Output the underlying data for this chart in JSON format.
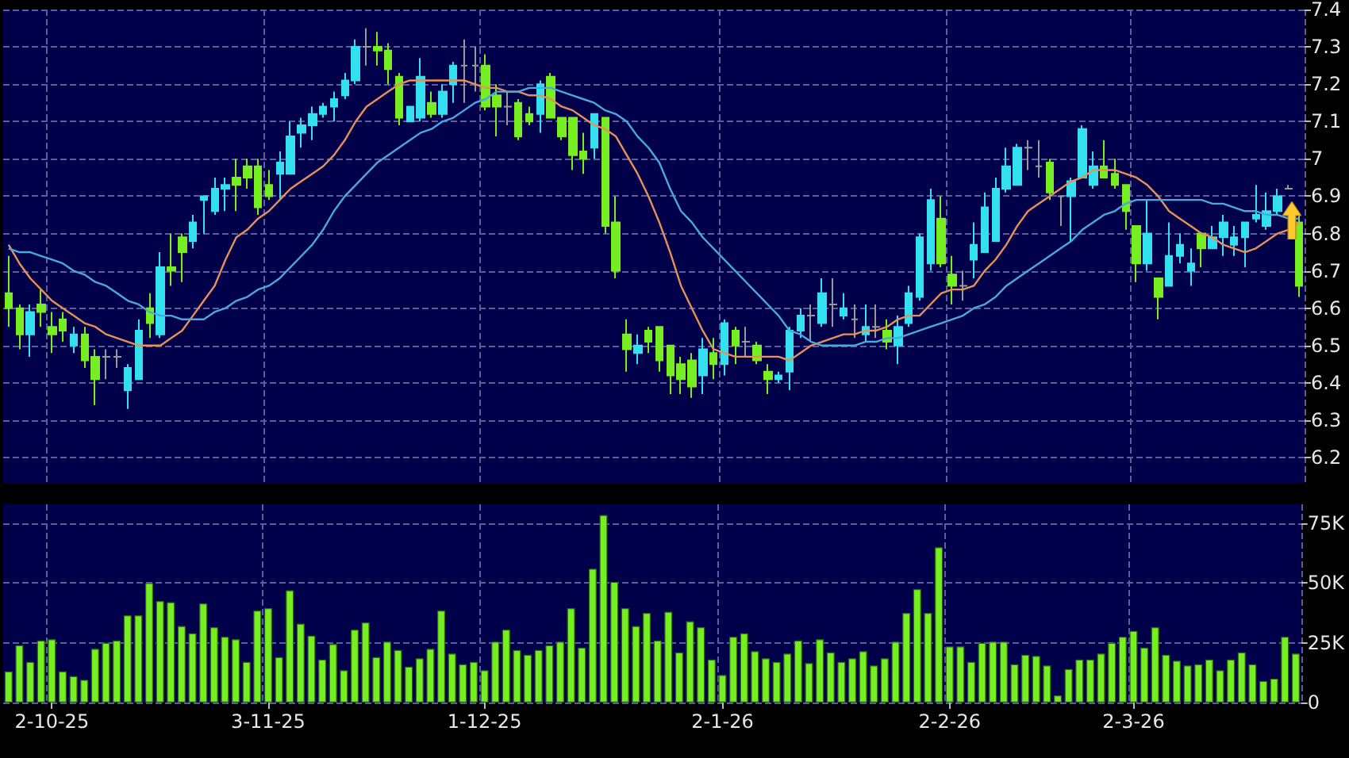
{
  "chart_data": [
    {
      "type": "candlestick",
      "ylim": [
        6.13,
        7.4
      ],
      "yticks": [
        6.2,
        6.3,
        6.4,
        6.5,
        6.6,
        6.7,
        6.8,
        6.9,
        7,
        7.1,
        7.2,
        7.3,
        7.4
      ],
      "tick_labels": "y",
      "grid": true,
      "categories": [
        null,
        null,
        null,
        null,
        null,
        null,
        null,
        null,
        null,
        null,
        null,
        null,
        null,
        null,
        null,
        null,
        null,
        null,
        null,
        null,
        null,
        null,
        null,
        null,
        null,
        null,
        null,
        null,
        null,
        null,
        null,
        null,
        null,
        null,
        null,
        null,
        null,
        null,
        null,
        null,
        null,
        null,
        null,
        null,
        null,
        null,
        null,
        null,
        null,
        null,
        null,
        null,
        null,
        null,
        null,
        null,
        null,
        null,
        null,
        null,
        null,
        null,
        null,
        null,
        null,
        null,
        null,
        null,
        null,
        null,
        null,
        null,
        null,
        null,
        null,
        null,
        null,
        null,
        null,
        null,
        null,
        null,
        null,
        null,
        null,
        null,
        null,
        null,
        null,
        null,
        null,
        null,
        null,
        null,
        null,
        null,
        null,
        null,
        null,
        null,
        null,
        null,
        null,
        null,
        null,
        null,
        null,
        null,
        null,
        null,
        null,
        null,
        null,
        null,
        null,
        null,
        null,
        null,
        null,
        null
      ],
      "ohlc": [
        [
          6.64,
          6.74,
          6.55,
          6.6
        ],
        [
          6.6,
          6.61,
          6.49,
          6.53
        ],
        [
          6.53,
          6.61,
          6.47,
          6.59
        ],
        [
          6.61,
          6.65,
          6.55,
          6.59
        ],
        [
          6.55,
          6.59,
          6.48,
          6.53
        ],
        [
          6.57,
          6.59,
          6.51,
          6.54
        ],
        [
          6.5,
          6.55,
          6.48,
          6.53
        ],
        [
          6.53,
          6.55,
          6.44,
          6.46
        ],
        [
          6.47,
          6.49,
          6.34,
          6.41
        ],
        [
          6.47,
          6.49,
          6.41,
          6.47
        ],
        [
          6.47,
          6.49,
          6.44,
          6.47
        ],
        [
          6.38,
          6.45,
          6.33,
          6.44
        ],
        [
          6.41,
          6.57,
          6.41,
          6.54
        ],
        [
          6.6,
          6.64,
          6.52,
          6.56
        ],
        [
          6.53,
          6.75,
          6.52,
          6.71
        ],
        [
          6.71,
          6.8,
          6.66,
          6.7
        ],
        [
          6.79,
          6.8,
          6.67,
          6.75
        ],
        [
          6.78,
          6.85,
          6.76,
          6.83
        ],
        [
          6.89,
          6.9,
          6.8,
          6.9
        ],
        [
          6.86,
          6.95,
          6.85,
          6.92
        ],
        [
          6.92,
          6.95,
          6.86,
          6.93
        ],
        [
          6.95,
          7.0,
          6.86,
          6.93
        ],
        [
          6.98,
          7.0,
          6.92,
          6.95
        ],
        [
          6.98,
          7.0,
          6.85,
          6.87
        ],
        [
          6.93,
          6.97,
          6.89,
          6.9
        ],
        [
          6.96,
          7.02,
          6.89,
          6.99
        ],
        [
          6.96,
          7.1,
          6.96,
          7.06
        ],
        [
          7.07,
          7.11,
          7.03,
          7.09
        ],
        [
          7.09,
          7.14,
          7.05,
          7.12
        ],
        [
          7.12,
          7.15,
          7.11,
          7.14
        ],
        [
          7.14,
          7.18,
          7.1,
          7.16
        ],
        [
          7.17,
          7.23,
          7.16,
          7.21
        ],
        [
          7.21,
          7.32,
          7.2,
          7.3
        ],
        [
          7.3,
          7.35,
          7.25,
          7.3
        ],
        [
          7.3,
          7.34,
          7.25,
          7.29
        ],
        [
          7.29,
          7.31,
          7.2,
          7.24
        ],
        [
          7.22,
          7.23,
          7.09,
          7.11
        ],
        [
          7.1,
          7.14,
          7.1,
          7.14
        ],
        [
          7.11,
          7.27,
          7.1,
          7.22
        ],
        [
          7.15,
          7.18,
          7.11,
          7.12
        ],
        [
          7.12,
          7.2,
          7.11,
          7.18
        ],
        [
          7.2,
          7.26,
          7.15,
          7.25
        ],
        [
          7.25,
          7.32,
          7.15,
          7.25
        ],
        [
          7.25,
          7.3,
          7.18,
          7.25
        ],
        [
          7.25,
          7.28,
          7.13,
          7.14
        ],
        [
          7.17,
          7.2,
          7.06,
          7.14
        ],
        [
          7.14,
          7.18,
          7.09,
          7.14
        ],
        [
          7.15,
          7.16,
          7.05,
          7.06
        ],
        [
          7.12,
          7.14,
          7.09,
          7.1
        ],
        [
          7.12,
          7.21,
          7.07,
          7.2
        ],
        [
          7.22,
          7.23,
          7.11,
          7.11
        ],
        [
          7.11,
          7.11,
          7.05,
          7.06
        ],
        [
          7.11,
          7.11,
          6.97,
          7.01
        ],
        [
          7.02,
          7.07,
          6.96,
          7.0
        ],
        [
          7.03,
          7.12,
          7.0,
          7.12
        ],
        [
          7.11,
          7.11,
          6.8,
          6.82
        ],
        [
          6.83,
          6.9,
          6.68,
          6.7
        ],
        [
          6.53,
          6.57,
          6.43,
          6.49
        ],
        [
          6.48,
          6.53,
          6.45,
          6.5
        ],
        [
          6.54,
          6.55,
          6.48,
          6.51
        ],
        [
          6.55,
          6.55,
          6.43,
          6.46
        ],
        [
          6.5,
          6.5,
          6.37,
          6.42
        ],
        [
          6.45,
          6.47,
          6.37,
          6.41
        ],
        [
          6.46,
          6.48,
          6.36,
          6.39
        ],
        [
          6.42,
          6.52,
          6.37,
          6.49
        ],
        [
          6.48,
          6.52,
          6.41,
          6.45
        ],
        [
          6.45,
          6.57,
          6.42,
          6.56
        ],
        [
          6.54,
          6.55,
          6.45,
          6.5
        ],
        [
          6.51,
          6.55,
          6.47,
          6.51
        ],
        [
          6.5,
          6.51,
          6.45,
          6.46
        ],
        [
          6.43,
          6.45,
          6.37,
          6.41
        ],
        [
          6.41,
          6.43,
          6.4,
          6.42
        ],
        [
          6.43,
          6.55,
          6.38,
          6.54
        ],
        [
          6.54,
          6.6,
          6.52,
          6.58
        ],
        [
          6.58,
          6.61,
          6.51,
          6.58
        ],
        [
          6.56,
          6.68,
          6.55,
          6.64
        ],
        [
          6.61,
          6.68,
          6.55,
          6.61
        ],
        [
          6.58,
          6.64,
          6.57,
          6.6
        ],
        [
          6.57,
          6.61,
          6.52,
          6.57
        ],
        [
          6.53,
          6.61,
          6.51,
          6.55
        ],
        [
          6.55,
          6.61,
          6.52,
          6.55
        ],
        [
          6.54,
          6.57,
          6.49,
          6.51
        ],
        [
          6.5,
          6.58,
          6.45,
          6.55
        ],
        [
          6.56,
          6.66,
          6.55,
          6.64
        ],
        [
          6.63,
          6.8,
          6.62,
          6.79
        ],
        [
          6.72,
          6.92,
          6.7,
          6.89
        ],
        [
          6.84,
          6.9,
          6.71,
          6.72
        ],
        [
          6.69,
          6.74,
          6.61,
          6.66
        ],
        [
          6.66,
          6.7,
          6.62,
          6.66
        ],
        [
          6.73,
          6.83,
          6.68,
          6.77
        ],
        [
          6.75,
          6.91,
          6.75,
          6.87
        ],
        [
          6.78,
          6.95,
          6.78,
          6.92
        ],
        [
          6.92,
          7.03,
          6.91,
          6.98
        ],
        [
          6.93,
          7.04,
          6.93,
          7.03
        ],
        [
          7.03,
          7.05,
          6.97,
          7.03
        ],
        [
          6.98,
          7.05,
          6.95,
          6.98
        ],
        [
          6.99,
          7.0,
          6.89,
          6.91
        ],
        [
          6.9,
          6.9,
          6.82,
          6.9
        ],
        [
          6.9,
          6.95,
          6.78,
          6.94
        ],
        [
          6.95,
          7.09,
          6.95,
          7.08
        ],
        [
          6.93,
          7.02,
          6.92,
          6.98
        ],
        [
          6.98,
          7.05,
          6.95,
          6.95
        ],
        [
          6.96,
          7.0,
          6.92,
          6.93
        ],
        [
          6.93,
          6.93,
          6.81,
          6.86
        ],
        [
          6.82,
          6.82,
          6.67,
          6.72
        ],
        [
          6.72,
          6.89,
          6.7,
          6.8
        ],
        [
          6.68,
          6.68,
          6.57,
          6.63
        ],
        [
          6.66,
          6.83,
          6.66,
          6.74
        ],
        [
          6.74,
          6.8,
          6.72,
          6.77
        ],
        [
          6.7,
          6.76,
          6.66,
          6.72
        ],
        [
          6.8,
          6.8,
          6.71,
          6.76
        ],
        [
          6.76,
          6.82,
          6.76,
          6.79
        ],
        [
          6.79,
          6.85,
          6.74,
          6.83
        ],
        [
          6.77,
          6.82,
          6.74,
          6.79
        ],
        [
          6.79,
          6.83,
          6.71,
          6.83
        ],
        [
          6.84,
          6.93,
          6.83,
          6.85
        ],
        [
          6.82,
          6.91,
          6.81,
          6.86
        ],
        [
          6.86,
          6.92,
          6.85,
          6.9
        ],
        [
          6.92,
          6.93,
          6.92,
          6.92
        ],
        [
          6.83,
          6.85,
          6.63,
          6.66
        ]
      ],
      "colors": [
        "#77ee22",
        "#77ee22",
        "#33e0f0",
        "#77ee22",
        "#77ee22",
        "#77ee22",
        "#33e0f0",
        "#77ee22",
        "#77ee22",
        "#999999",
        "#999999",
        "#33e0f0",
        "#33e0f0",
        "#77ee22",
        "#33e0f0",
        "#77ee22",
        "#77ee22",
        "#33e0f0",
        "#33e0f0",
        "#33e0f0",
        "#33e0f0",
        "#77ee22",
        "#77ee22",
        "#77ee22",
        "#77ee22",
        "#33e0f0",
        "#33e0f0",
        "#33e0f0",
        "#33e0f0",
        "#33e0f0",
        "#33e0f0",
        "#33e0f0",
        "#33e0f0",
        "#999999",
        "#77ee22",
        "#77ee22",
        "#77ee22",
        "#33e0f0",
        "#33e0f0",
        "#77ee22",
        "#33e0f0",
        "#33e0f0",
        "#999999",
        "#999999",
        "#77ee22",
        "#77ee22",
        "#999999",
        "#77ee22",
        "#77ee22",
        "#33e0f0",
        "#77ee22",
        "#77ee22",
        "#77ee22",
        "#77ee22",
        "#33e0f0",
        "#77ee22",
        "#77ee22",
        "#77ee22",
        "#33e0f0",
        "#77ee22",
        "#77ee22",
        "#77ee22",
        "#77ee22",
        "#77ee22",
        "#33e0f0",
        "#77ee22",
        "#33e0f0",
        "#77ee22",
        "#999999",
        "#77ee22",
        "#77ee22",
        "#33e0f0",
        "#33e0f0",
        "#33e0f0",
        "#999999",
        "#33e0f0",
        "#999999",
        "#33e0f0",
        "#999999",
        "#33e0f0",
        "#999999",
        "#77ee22",
        "#33e0f0",
        "#33e0f0",
        "#33e0f0",
        "#33e0f0",
        "#77ee22",
        "#77ee22",
        "#999999",
        "#33e0f0",
        "#33e0f0",
        "#33e0f0",
        "#33e0f0",
        "#33e0f0",
        "#999999",
        "#999999",
        "#77ee22",
        "#999999",
        "#33e0f0",
        "#33e0f0",
        "#33e0f0",
        "#77ee22",
        "#77ee22",
        "#77ee22",
        "#77ee22",
        "#33e0f0",
        "#77ee22",
        "#33e0f0",
        "#33e0f0",
        "#33e0f0",
        "#77ee22",
        "#33e0f0",
        "#33e0f0",
        "#33e0f0",
        "#33e0f0",
        "#33e0f0",
        "#33e0f0",
        "#33e0f0",
        "#999999",
        "#77ee22"
      ],
      "series": [
        {
          "type": "line",
          "color": "#e8905a",
          "values": [
            6.77,
            6.72,
            6.68,
            6.65,
            6.62,
            6.6,
            6.58,
            6.56,
            6.55,
            6.53,
            6.52,
            6.51,
            6.5,
            6.5,
            6.5,
            6.52,
            6.54,
            6.58,
            6.62,
            6.66,
            6.73,
            6.79,
            6.81,
            6.84,
            6.86,
            6.89,
            6.92,
            6.94,
            6.96,
            6.98,
            7.01,
            7.05,
            7.1,
            7.14,
            7.16,
            7.18,
            7.2,
            7.21,
            7.21,
            7.21,
            7.21,
            7.21,
            7.21,
            7.2,
            7.19,
            7.19,
            7.18,
            7.18,
            7.17,
            7.17,
            7.16,
            7.14,
            7.13,
            7.11,
            7.09,
            7.08,
            7.06,
            7.01,
            6.96,
            6.9,
            6.83,
            6.75,
            6.66,
            6.6,
            6.54,
            6.49,
            6.48,
            6.47,
            6.47,
            6.47,
            6.47,
            6.47,
            6.46,
            6.48,
            6.5,
            6.51,
            6.52,
            6.53,
            6.53,
            6.54,
            6.54,
            6.55,
            6.57,
            6.58,
            6.58,
            6.61,
            6.64,
            6.65,
            6.65,
            6.66,
            6.7,
            6.73,
            6.77,
            6.82,
            6.86,
            6.88,
            6.9,
            6.92,
            6.94,
            6.95,
            6.97,
            6.97,
            6.97,
            6.96,
            6.95,
            6.93,
            6.9,
            6.86,
            6.84,
            6.82,
            6.8,
            6.79,
            6.77,
            6.76,
            6.75,
            6.76,
            6.78,
            6.8,
            6.81,
            6.83
          ]
        },
        {
          "type": "line",
          "color": "#4aa8e0",
          "values": [
            6.76,
            6.75,
            6.75,
            6.74,
            6.73,
            6.72,
            6.7,
            6.69,
            6.67,
            6.66,
            6.64,
            6.62,
            6.61,
            6.59,
            6.58,
            6.58,
            6.57,
            6.57,
            6.57,
            6.59,
            6.6,
            6.62,
            6.63,
            6.65,
            6.66,
            6.68,
            6.71,
            6.74,
            6.77,
            6.81,
            6.86,
            6.9,
            6.93,
            6.96,
            6.99,
            7.01,
            7.03,
            7.05,
            7.07,
            7.08,
            7.1,
            7.11,
            7.13,
            7.15,
            7.16,
            7.18,
            7.18,
            7.18,
            7.19,
            7.19,
            7.19,
            7.18,
            7.17,
            7.16,
            7.15,
            7.13,
            7.12,
            7.1,
            7.06,
            7.03,
            6.99,
            6.92,
            6.86,
            6.83,
            6.79,
            6.76,
            6.73,
            6.7,
            6.67,
            6.64,
            6.61,
            6.58,
            6.54,
            6.53,
            6.51,
            6.5,
            6.5,
            6.5,
            6.5,
            6.51,
            6.51,
            6.52,
            6.52,
            6.53,
            6.54,
            6.55,
            6.56,
            6.57,
            6.58,
            6.6,
            6.61,
            6.63,
            6.66,
            6.68,
            6.7,
            6.72,
            6.74,
            6.76,
            6.78,
            6.81,
            6.83,
            6.85,
            6.86,
            6.88,
            6.89,
            6.89,
            6.89,
            6.89,
            6.89,
            6.89,
            6.89,
            6.88,
            6.88,
            6.87,
            6.86,
            6.86,
            6.85,
            6.85,
            6.84,
            6.84
          ]
        }
      ]
    },
    {
      "type": "bar",
      "color": "#77ee22",
      "ylim": [
        0,
        83000
      ],
      "grid": true,
      "yticks": [
        0,
        {
          "value": 25000,
          "label": "25K"
        },
        {
          "value": 50000,
          "label": "50K"
        },
        {
          "value": 75000,
          "label": "75K"
        }
      ],
      "categories": [
        null,
        null,
        null,
        null,
        "2-10-25",
        null,
        null,
        null,
        null,
        null,
        null,
        null,
        null,
        null,
        null,
        null,
        null,
        null,
        null,
        null,
        null,
        null,
        null,
        null,
        "3-11-25",
        null,
        null,
        null,
        null,
        null,
        null,
        null,
        null,
        null,
        null,
        null,
        null,
        null,
        null,
        null,
        null,
        null,
        null,
        null,
        "1-12-25",
        null,
        null,
        null,
        null,
        null,
        null,
        null,
        null,
        null,
        null,
        null,
        null,
        null,
        null,
        null,
        null,
        null,
        null,
        null,
        null,
        null,
        "2-1-26",
        null,
        null,
        null,
        null,
        null,
        null,
        null,
        null,
        null,
        null,
        null,
        null,
        null,
        null,
        null,
        null,
        null,
        null,
        null,
        null,
        "2-2-26",
        null,
        null,
        null,
        null,
        null,
        null,
        null,
        null,
        null,
        null,
        null,
        null,
        null,
        null,
        null,
        null,
        "2-3-26",
        null,
        null,
        null,
        null,
        null,
        null,
        null,
        null,
        null,
        null,
        null,
        null,
        null,
        null,
        null
      ],
      "values": [
        13000,
        24000,
        17000,
        26000,
        26500,
        13000,
        11000,
        9500,
        22500,
        25000,
        26000,
        36500,
        36500,
        50000,
        42500,
        42000,
        32000,
        29000,
        41500,
        31500,
        27500,
        26500,
        17000,
        38500,
        39500,
        19000,
        47000,
        33000,
        28000,
        18000,
        24500,
        13500,
        30500,
        33500,
        19000,
        25500,
        22000,
        15000,
        18500,
        22500,
        38500,
        20500,
        16000,
        17000,
        13500,
        25500,
        30500,
        22000,
        20000,
        22000,
        24000,
        25500,
        39500,
        23000,
        56000,
        78500,
        50500,
        39500,
        32000,
        37500,
        26000,
        38000,
        21000,
        34000,
        31500,
        18000,
        11500,
        27500,
        29000,
        21500,
        18500,
        17000,
        20500,
        26000,
        16500,
        26500,
        21000,
        17000,
        18500,
        21500,
        15500,
        18500,
        25500,
        37500,
        47500,
        37500,
        65000,
        23500,
        23500,
        17000,
        25000,
        25500,
        25500,
        16000,
        20000,
        19500,
        15500,
        3000,
        14000,
        18000,
        18000,
        20500,
        25000,
        27500,
        30000,
        23000,
        31500,
        20000,
        17500,
        15500,
        16000,
        18000,
        13500,
        18000,
        21000,
        16000,
        9000,
        10000,
        27500,
        20500
      ]
    }
  ]
}
